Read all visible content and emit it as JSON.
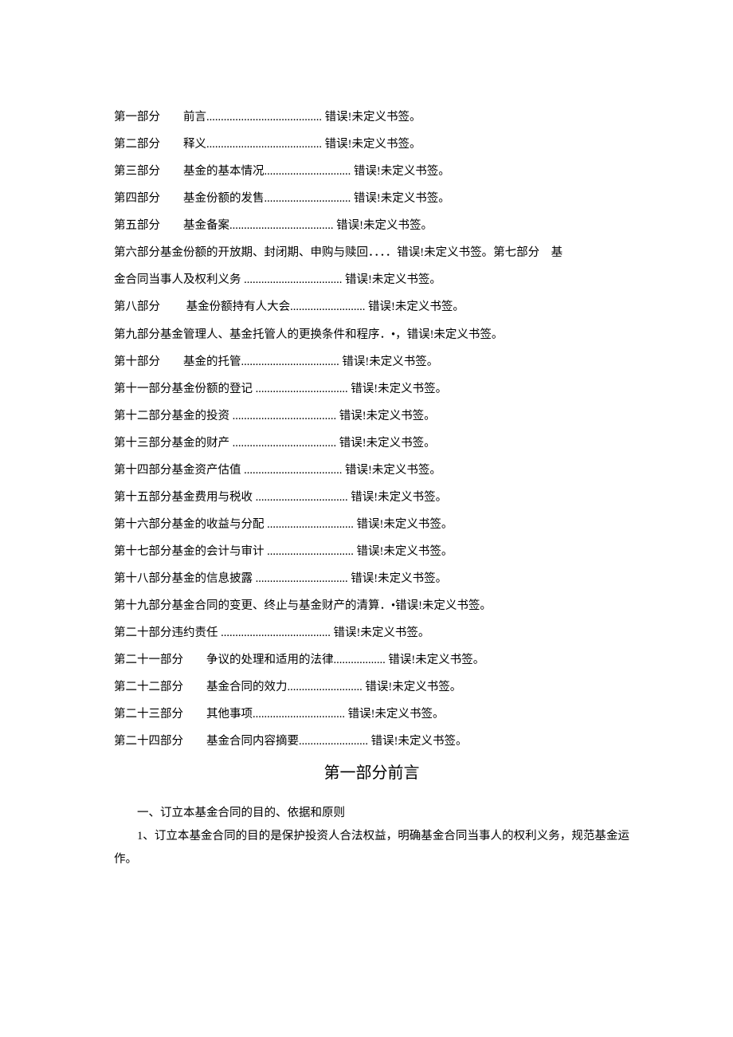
{
  "error_text": "错误!未定义书签。",
  "toc": [
    {
      "label": "第一部分　　前言",
      "dots": "........................................ "
    },
    {
      "label": "第二部分　　释义",
      "dots": "........................................ "
    },
    {
      "label": "第三部分　　基金的基本情况",
      "dots": ".............................. "
    },
    {
      "label": "第四部分　　基金份额的发售",
      "dots": ".............................. "
    },
    {
      "label": "第五部分　　基金备案",
      "dots": ".................................... "
    },
    {
      "label": "第六部分基金份额的开放期、封闭期、申购与赎回．．．．",
      "dots": ""
    },
    {
      "label": "错误!未定义书签。第七部分　基",
      "dots": "",
      "inline_prev": true
    },
    {
      "label": "金合同当事人及权利义务 ",
      "dots": ".................................. "
    },
    {
      "label": "第八部分　　 基金份额持有人大会",
      "dots": ".......................... "
    },
    {
      "label": "第九部分基金管理人、基金托管人的更换条件和程序．•，",
      "dots": "",
      "short": true
    },
    {
      "label": "第十部分　　基金的托管",
      "dots": ".................................. "
    },
    {
      "label": "第十一部分基金份额的登记 ",
      "dots": "................................ "
    },
    {
      "label": "第十二部分基金的投资 ",
      "dots": ".................................... "
    },
    {
      "label": "第十三部分基金的财产 ",
      "dots": ".................................... "
    },
    {
      "label": "第十四部分基金资产估值 ",
      "dots": ".................................. "
    },
    {
      "label": "第十五部分基金费用与税收 ",
      "dots": "................................ "
    },
    {
      "label": "第十六部分基金的收益与分配 ",
      "dots": ".............................. "
    },
    {
      "label": "第十七部分基金的会计与审计 ",
      "dots": ".............................. "
    },
    {
      "label": "第十八部分基金的信息披露 ",
      "dots": "................................ "
    },
    {
      "label": "第十九部分基金合同的变更、终止与基金财产的清算．•",
      "dots": "",
      "short": true
    },
    {
      "label": "第二十部分违约责任 ",
      "dots": "...................................... "
    },
    {
      "label": "第二十一部分　　争议的处理和适用的法律",
      "dots": ".................. "
    },
    {
      "label": "第二十二部分　　基金合同的效力",
      "dots": ".......................... "
    },
    {
      "label": "第二十三部分　　其他事项",
      "dots": "................................ "
    },
    {
      "label": "第二十四部分　　基金合同内容摘要",
      "dots": "........................ "
    }
  ],
  "section_title": "第一部分前言",
  "body": [
    "一、订立本基金合同的目的、依据和原则",
    "1、订立本基金合同的目的是保护投资人合法权益，明确基金合同当事人的权利义务，规范基金运作。"
  ],
  "colors": {
    "text": "#000000",
    "background": "#ffffff"
  },
  "fonts": {
    "body_family": "SimSun",
    "body_size_pt": 11,
    "title_size_pt": 15
  }
}
